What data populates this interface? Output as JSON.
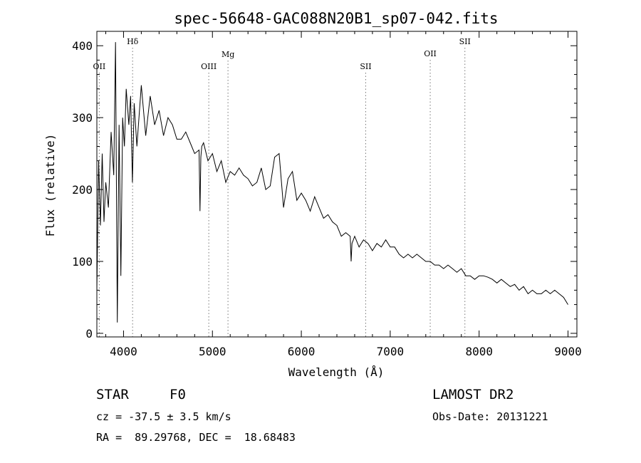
{
  "chart_data": {
    "type": "line",
    "title": "spec-56648-GAC088N20B1_sp07-042.fits",
    "xlabel": "Wavelength (Å)",
    "ylabel": "Flux (relative)",
    "xlim": [
      3700,
      9100
    ],
    "ylim": [
      -5,
      420
    ],
    "x_ticks": [
      4000,
      5000,
      6000,
      7000,
      8000,
      9000
    ],
    "y_ticks": [
      0,
      100,
      200,
      300,
      400
    ],
    "grid": false,
    "line_color": "#000000",
    "marker_color": "#777777",
    "line_markers": [
      {
        "label": "OII",
        "wavelength": 3727
      },
      {
        "label": "Hδ",
        "wavelength": 4102
      },
      {
        "label": "OIII",
        "wavelength": 4959
      },
      {
        "label": "Mg",
        "wavelength": 5175
      },
      {
        "label": "SII",
        "wavelength": 6724
      },
      {
        "label": "OII",
        "wavelength": 7450
      },
      {
        "label": "SII",
        "wavelength": 7840
      }
    ],
    "series": [
      {
        "x": [
          3700,
          3720,
          3740,
          3760,
          3780,
          3800,
          3830,
          3860,
          3890,
          3910,
          3930,
          3950,
          3970,
          3990,
          4010,
          4030,
          4060,
          4080,
          4100,
          4120,
          4150,
          4200,
          4250,
          4300,
          4350,
          4400,
          4450,
          4500,
          4550,
          4600,
          4650,
          4700,
          4750,
          4800,
          4850,
          4860,
          4870,
          4880,
          4900,
          4950,
          5000,
          5050,
          5100,
          5150,
          5200,
          5250,
          5300,
          5350,
          5400,
          5450,
          5500,
          5550,
          5600,
          5650,
          5700,
          5750,
          5800,
          5850,
          5900,
          5950,
          6000,
          6050,
          6100,
          6150,
          6200,
          6250,
          6300,
          6350,
          6400,
          6450,
          6500,
          6550,
          6560,
          6570,
          6600,
          6650,
          6700,
          6750,
          6800,
          6850,
          6900,
          6950,
          7000,
          7050,
          7100,
          7150,
          7200,
          7250,
          7300,
          7350,
          7400,
          7450,
          7500,
          7550,
          7600,
          7650,
          7700,
          7750,
          7800,
          7850,
          7900,
          7950,
          8000,
          8050,
          8100,
          8150,
          8200,
          8250,
          8300,
          8350,
          8400,
          8450,
          8500,
          8550,
          8600,
          8650,
          8700,
          8750,
          8800,
          8850,
          8900,
          8950,
          9000
        ],
        "y": [
          60,
          240,
          150,
          250,
          155,
          210,
          175,
          280,
          220,
          405,
          15,
          290,
          80,
          300,
          260,
          340,
          290,
          330,
          210,
          320,
          260,
          345,
          275,
          330,
          290,
          310,
          275,
          300,
          290,
          270,
          270,
          280,
          265,
          250,
          255,
          170,
          245,
          260,
          265,
          240,
          250,
          225,
          240,
          210,
          225,
          220,
          230,
          220,
          215,
          205,
          210,
          230,
          200,
          205,
          245,
          250,
          175,
          215,
          225,
          185,
          195,
          185,
          170,
          190,
          175,
          160,
          165,
          155,
          150,
          135,
          140,
          135,
          100,
          125,
          135,
          120,
          130,
          125,
          115,
          125,
          120,
          130,
          120,
          120,
          110,
          105,
          110,
          105,
          110,
          105,
          100,
          100,
          95,
          95,
          90,
          95,
          90,
          85,
          90,
          80,
          80,
          75,
          80,
          80,
          78,
          75,
          70,
          75,
          70,
          65,
          68,
          60,
          65,
          55,
          60,
          55,
          55,
          60,
          55,
          60,
          55,
          50,
          40
        ]
      }
    ]
  },
  "info": {
    "object_type": "STAR",
    "spectral_class": "F0",
    "survey": "LAMOST DR2",
    "redshift_text": "cz = -37.5 ± 3.5 km/s",
    "obs_date_text": "Obs-Date: 20131221",
    "coords_text": "RA =  89.29768, DEC =  18.68483"
  }
}
